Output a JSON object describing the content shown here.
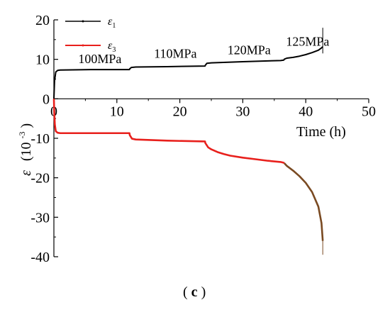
{
  "chart_data": {
    "type": "line",
    "xlabel": "Time (h)",
    "ylabel_symbol": "ε",
    "ylabel_unit": "(10",
    "ylabel_exponent": "-3",
    "ylabel_unit_close": ")",
    "xlim": [
      0,
      50
    ],
    "ylim": [
      -40,
      20
    ],
    "x_ticks": [
      0,
      10,
      20,
      30,
      40,
      50
    ],
    "y_ticks": [
      20,
      10,
      0,
      -10,
      -20,
      -30,
      -40
    ],
    "x_tick_labels": [
      "0",
      "10",
      "20",
      "30",
      "40",
      "50"
    ],
    "y_tick_labels": [
      "20",
      "10",
      "0",
      "-10",
      "-20",
      "-30",
      "-40"
    ],
    "legend_position": "top-left",
    "grid": false,
    "series": [
      {
        "name_symbol": "ε",
        "name_subscript": "1",
        "color": "#000000",
        "points": [
          [
            0,
            0
          ],
          [
            0.1,
            4.5
          ],
          [
            0.3,
            6.8
          ],
          [
            0.6,
            7.2
          ],
          [
            1,
            7.3
          ],
          [
            6,
            7.4
          ],
          [
            12,
            7.4
          ],
          [
            12.05,
            7.6
          ],
          [
            12.3,
            7.95
          ],
          [
            13,
            8.05
          ],
          [
            18,
            8.15
          ],
          [
            24,
            8.3
          ],
          [
            24.05,
            8.5
          ],
          [
            24.3,
            9.0
          ],
          [
            25,
            9.1
          ],
          [
            30,
            9.4
          ],
          [
            36,
            9.7
          ],
          [
            36.5,
            9.8
          ],
          [
            36.6,
            10.05
          ],
          [
            37,
            10.3
          ],
          [
            38,
            10.5
          ],
          [
            39,
            10.8
          ],
          [
            40,
            11.2
          ],
          [
            41,
            11.7
          ],
          [
            42,
            12.3
          ],
          [
            42.5,
            12.9
          ],
          [
            42.7,
            13.2
          ]
        ],
        "spike": {
          "x": 42.7,
          "y_min": 11.5,
          "y_max": 18
        }
      },
      {
        "name_symbol": "ε",
        "name_subscript": "3",
        "color": "#e8201c",
        "tail_color": "#7a4a22",
        "tail_start_x": 36.6,
        "points": [
          [
            0,
            0
          ],
          [
            0.05,
            -3
          ],
          [
            0.15,
            -6.5
          ],
          [
            0.3,
            -8.2
          ],
          [
            0.6,
            -8.6
          ],
          [
            1,
            -8.7
          ],
          [
            6,
            -8.7
          ],
          [
            12,
            -8.7
          ],
          [
            12.05,
            -9.2
          ],
          [
            12.4,
            -10.1
          ],
          [
            13,
            -10.3
          ],
          [
            18,
            -10.6
          ],
          [
            24,
            -10.8
          ],
          [
            24.05,
            -11.2
          ],
          [
            24.5,
            -12.3
          ],
          [
            25,
            -12.8
          ],
          [
            26,
            -13.5
          ],
          [
            27,
            -14.0
          ],
          [
            28,
            -14.4
          ],
          [
            30,
            -14.9
          ],
          [
            32,
            -15.3
          ],
          [
            34,
            -15.7
          ],
          [
            36,
            -16.0
          ],
          [
            36.5,
            -16.2
          ],
          [
            36.6,
            -16.3
          ],
          [
            37,
            -17.0
          ],
          [
            38,
            -18.2
          ],
          [
            39,
            -19.6
          ],
          [
            40,
            -21.3
          ],
          [
            41,
            -23.6
          ],
          [
            42,
            -27.3
          ],
          [
            42.5,
            -31.5
          ],
          [
            42.7,
            -36.0
          ]
        ],
        "spike": {
          "x": 42.7,
          "y_min": -39.5,
          "y_max": -36
        }
      }
    ],
    "annotations": [
      {
        "text": "100MPa",
        "x": 7.3,
        "y": 9.0
      },
      {
        "text": "110MPa",
        "x": 19.3,
        "y": 10.4
      },
      {
        "text": "120MPa",
        "x": 31.0,
        "y": 11.3
      },
      {
        "text": "125MPa",
        "x": 40.3,
        "y": 13.4
      }
    ],
    "caption_open": "(",
    "caption_bold": "c",
    "caption_close": ")"
  }
}
